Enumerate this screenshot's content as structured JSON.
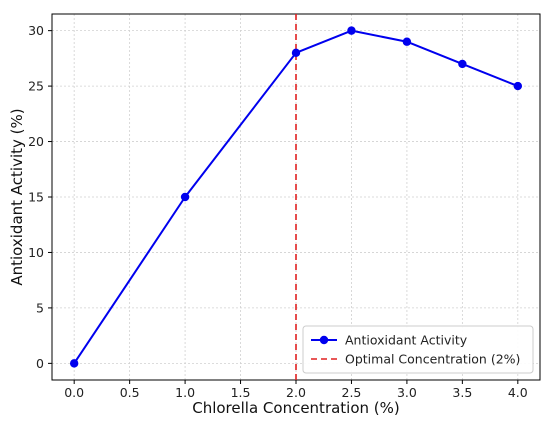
{
  "chart_data": {
    "type": "line",
    "xlabel": "Chlorella Concentration (%)",
    "ylabel": "Antioxidant Activity (%)",
    "x": [
      0.0,
      1.0,
      2.0,
      2.5,
      3.0,
      3.5,
      4.0
    ],
    "series": [
      {
        "name": "Antioxidant Activity",
        "values": [
          0,
          15,
          28,
          30,
          29,
          27,
          25
        ],
        "color": "#0000ee",
        "marker": "circle"
      }
    ],
    "reference_line": {
      "name": "Optimal Concentration (2%)",
      "x": 2.0,
      "color": "#e02020",
      "style": "dashed"
    },
    "xlim": [
      -0.2,
      4.2
    ],
    "ylim": [
      -1.5,
      31.5
    ],
    "xticks": [
      "0.0",
      "0.5",
      "1.0",
      "1.5",
      "2.0",
      "2.5",
      "3.0",
      "3.5",
      "4.0"
    ],
    "xtick_values": [
      0.0,
      0.5,
      1.0,
      1.5,
      2.0,
      2.5,
      3.0,
      3.5,
      4.0
    ],
    "yticks": [
      "0",
      "5",
      "10",
      "15",
      "20",
      "25",
      "30"
    ],
    "ytick_values": [
      0,
      5,
      10,
      15,
      20,
      25,
      30
    ],
    "grid": true,
    "legend_position": "bottom-right"
  }
}
